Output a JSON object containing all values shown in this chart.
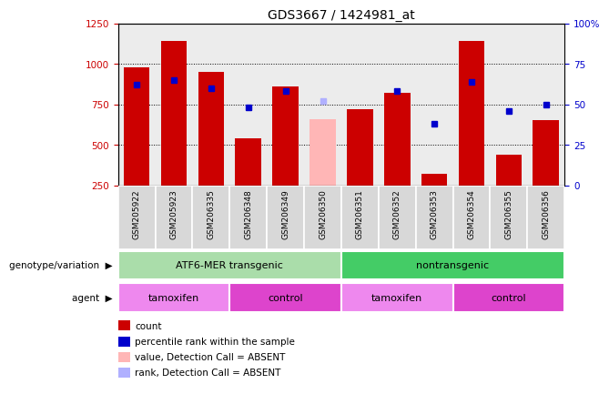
{
  "title": "GDS3667 / 1424981_at",
  "samples": [
    "GSM205922",
    "GSM205923",
    "GSM206335",
    "GSM206348",
    "GSM206349",
    "GSM206350",
    "GSM206351",
    "GSM206352",
    "GSM206353",
    "GSM206354",
    "GSM206355",
    "GSM206356"
  ],
  "counts": [
    980,
    1140,
    950,
    540,
    860,
    null,
    720,
    820,
    320,
    1140,
    440,
    650
  ],
  "counts_absent": [
    null,
    null,
    null,
    null,
    null,
    660,
    null,
    null,
    null,
    null,
    null,
    null
  ],
  "percentile_ranks": [
    62,
    65,
    60,
    48,
    58,
    null,
    null,
    58,
    38,
    64,
    46,
    50
  ],
  "percentile_ranks_absent": [
    null,
    null,
    null,
    null,
    null,
    52,
    null,
    null,
    null,
    null,
    null,
    null
  ],
  "ylim_left": [
    250,
    1250
  ],
  "ylim_right": [
    0,
    100
  ],
  "yticks_left": [
    250,
    500,
    750,
    1000,
    1250
  ],
  "yticks_right": [
    0,
    25,
    50,
    75,
    100
  ],
  "ylabel_left_color": "#cc0000",
  "ylabel_right_color": "#0000cc",
  "bar_color": "#cc0000",
  "bar_color_absent": "#ffb6b6",
  "dot_color": "#0000cc",
  "dot_color_absent": "#b0b0ff",
  "groups": [
    {
      "label": "ATF6-MER transgenic",
      "start": 0,
      "end": 6,
      "color": "#aaddaa"
    },
    {
      "label": "nontransgenic",
      "start": 6,
      "end": 12,
      "color": "#44cc66"
    }
  ],
  "agents": [
    {
      "label": "tamoxifen",
      "start": 0,
      "end": 3,
      "color": "#ee88ee"
    },
    {
      "label": "control",
      "start": 3,
      "end": 6,
      "color": "#dd44cc"
    },
    {
      "label": "tamoxifen",
      "start": 6,
      "end": 9,
      "color": "#ee88ee"
    },
    {
      "label": "control",
      "start": 9,
      "end": 12,
      "color": "#dd44cc"
    }
  ],
  "legend_items": [
    {
      "label": "count",
      "color": "#cc0000"
    },
    {
      "label": "percentile rank within the sample",
      "color": "#0000cc"
    },
    {
      "label": "value, Detection Call = ABSENT",
      "color": "#ffb6b6"
    },
    {
      "label": "rank, Detection Call = ABSENT",
      "color": "#b0b0ff"
    }
  ],
  "genotype_label": "genotype/variation",
  "agent_label": "agent",
  "background_color": "#ffffff",
  "plot_background": "#ffffff",
  "sample_box_color": "#d8d8d8"
}
